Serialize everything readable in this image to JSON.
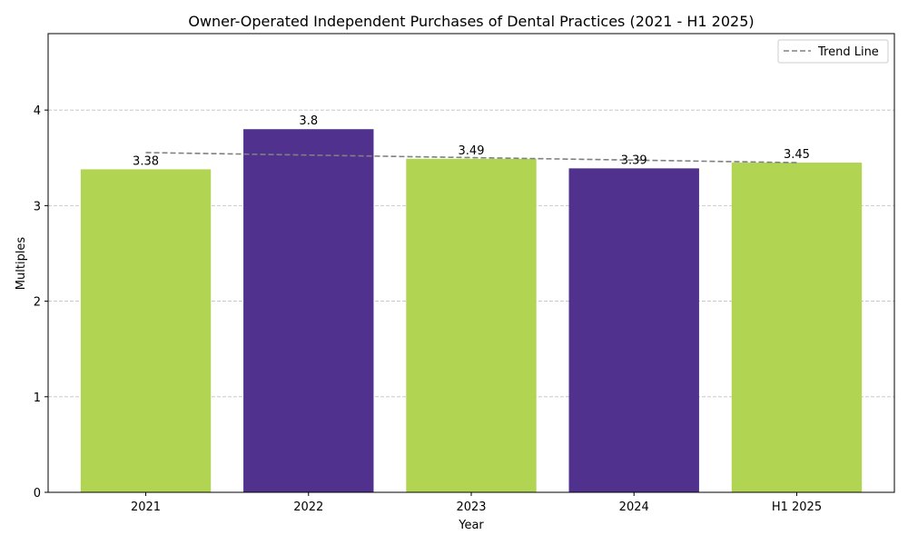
{
  "chart_data": {
    "type": "bar",
    "title": "Owner-Operated Independent Purchases of Dental Practices (2021 - H1 2025)",
    "xlabel": "Year",
    "ylabel": "Multiples",
    "categories": [
      "2021",
      "2022",
      "2023",
      "2024",
      "H1 2025"
    ],
    "values": [
      3.38,
      3.8,
      3.49,
      3.39,
      3.45
    ],
    "value_labels": [
      "3.38",
      "3.8",
      "3.49",
      "3.39",
      "3.45"
    ],
    "bar_colors": [
      "#b2d453",
      "#50318d",
      "#b2d453",
      "#50318d",
      "#b2d453"
    ],
    "ylim": [
      0,
      4.8
    ],
    "yticks": [
      0,
      1,
      2,
      3,
      4
    ],
    "ytick_labels": [
      "0",
      "1",
      "2",
      "3",
      "4"
    ],
    "grid": true,
    "trend_line": {
      "name": "Trend Line",
      "start": 3.555,
      "end": 3.45,
      "color": "#808080",
      "style": "dashed"
    },
    "legend": {
      "position": "top-right",
      "entries": [
        "Trend Line"
      ]
    }
  }
}
